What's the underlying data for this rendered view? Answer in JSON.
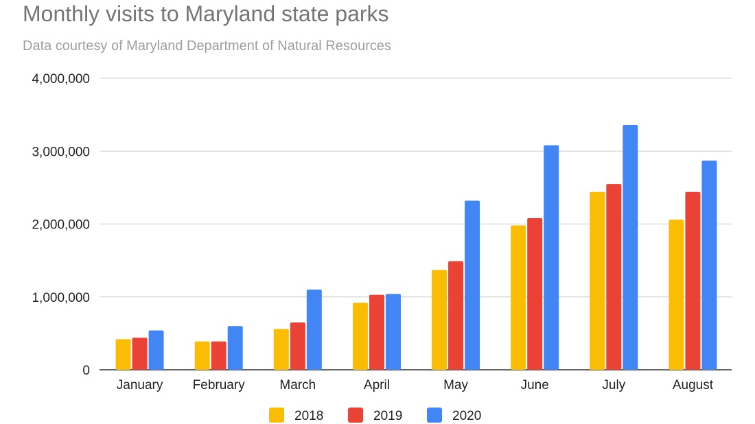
{
  "chart_data": {
    "type": "bar",
    "title": "Monthly visits to Maryland state parks",
    "subtitle": "Data courtesy of Maryland Department of Natural Resources",
    "xlabel": "",
    "ylabel": "",
    "categories": [
      "January",
      "February",
      "March",
      "April",
      "May",
      "June",
      "July",
      "August"
    ],
    "series": [
      {
        "name": "2018",
        "color": "#fbbc04",
        "values": [
          420000,
          390000,
          560000,
          920000,
          1370000,
          1980000,
          2440000,
          2060000
        ]
      },
      {
        "name": "2019",
        "color": "#ea4335",
        "values": [
          440000,
          390000,
          650000,
          1030000,
          1490000,
          2080000,
          2550000,
          2440000
        ]
      },
      {
        "name": "2020",
        "color": "#4285f4",
        "values": [
          540000,
          600000,
          1100000,
          1040000,
          2320000,
          3080000,
          3360000,
          2870000
        ]
      }
    ],
    "ylim": [
      0,
      4000000
    ],
    "yticks": [
      0,
      1000000,
      2000000,
      3000000,
      4000000
    ],
    "ytick_labels": [
      "0",
      "1,000,000",
      "2,000,000",
      "3,000,000",
      "4,000,000"
    ],
    "grid": true,
    "legend_position": "bottom"
  }
}
